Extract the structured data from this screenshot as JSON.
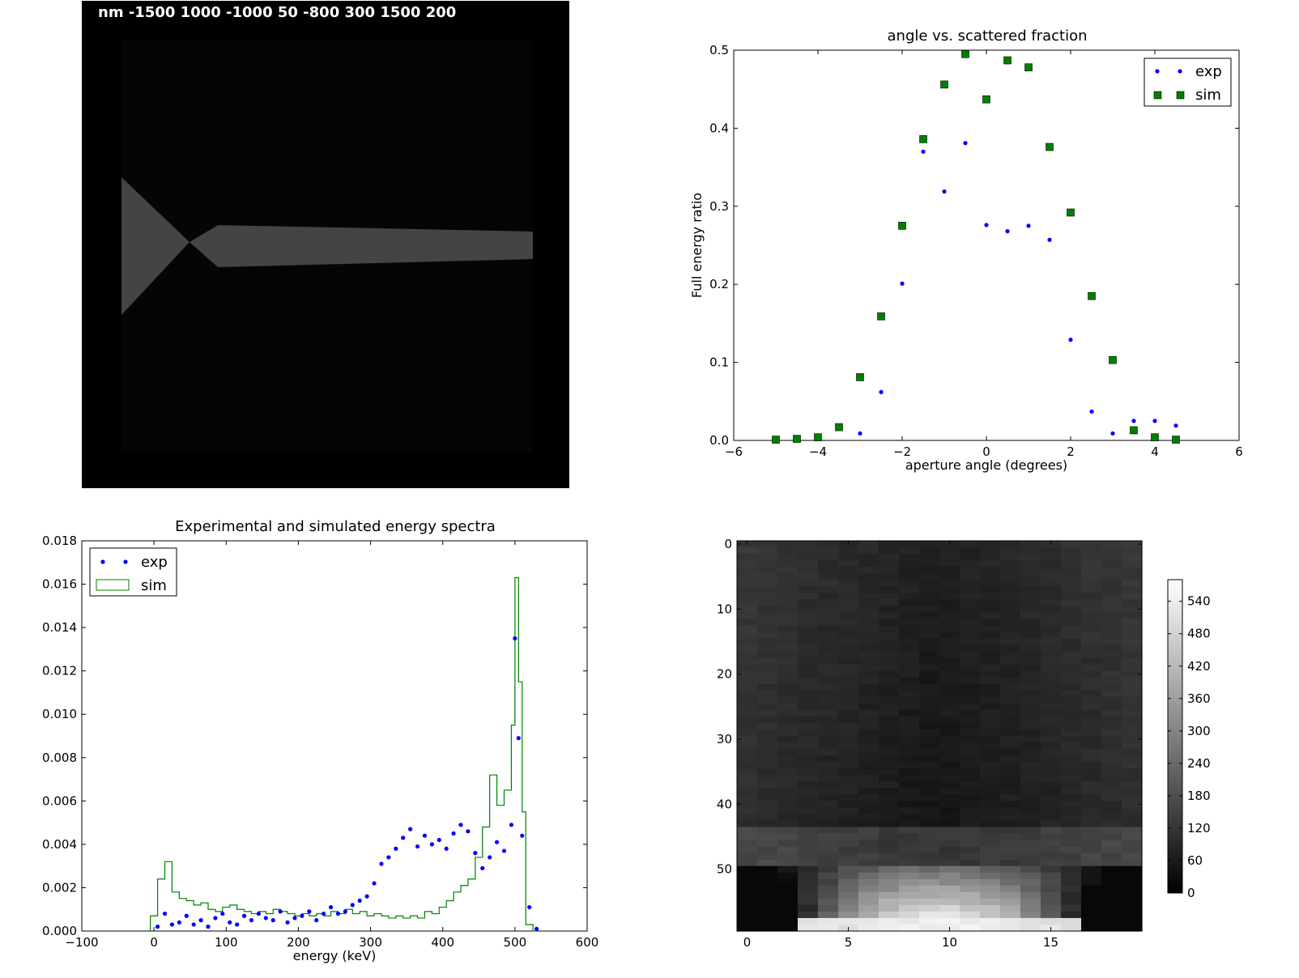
{
  "chart_data": [
    {
      "type": "image",
      "overlay_text": "nm -1500 1000 -1000 50 -800 300 1500 200"
    },
    {
      "type": "scatter",
      "title": "angle vs. scattered fraction",
      "xlabel": "aperture angle (degrees)",
      "ylabel": "Full energy ratio",
      "xlim": [
        -6,
        6
      ],
      "ylim": [
        0,
        0.5
      ],
      "xticks": [
        -6,
        -4,
        -2,
        0,
        2,
        4,
        6
      ],
      "yticks": [
        0.0,
        0.1,
        0.2,
        0.3,
        0.4,
        0.5
      ],
      "legend": "top-right",
      "series": [
        {
          "name": "exp",
          "color": "#0000ff",
          "marker": "point",
          "points": [
            [
              -3,
              0.009
            ],
            [
              -2.5,
              0.062
            ],
            [
              -2,
              0.201
            ],
            [
              -1.5,
              0.37
            ],
            [
              -1,
              0.319
            ],
            [
              -0.5,
              0.381
            ],
            [
              0,
              0.276
            ],
            [
              0.5,
              0.268
            ],
            [
              1,
              0.275
            ],
            [
              1.5,
              0.257
            ],
            [
              2,
              0.129
            ],
            [
              2.5,
              0.037
            ],
            [
              3,
              0.009
            ],
            [
              3.5,
              0.025
            ],
            [
              4,
              0.025
            ],
            [
              4.5,
              0.019
            ]
          ]
        },
        {
          "name": "sim",
          "color": "#008000",
          "marker": "square",
          "points": [
            [
              -5,
              0.001
            ],
            [
              -4.5,
              0.002
            ],
            [
              -4,
              0.004
            ],
            [
              -3.5,
              0.017
            ],
            [
              -3,
              0.081
            ],
            [
              -2.5,
              0.159
            ],
            [
              -2,
              0.275
            ],
            [
              -1.5,
              0.386
            ],
            [
              -1,
              0.456
            ],
            [
              -0.5,
              0.495
            ],
            [
              0,
              0.437
            ],
            [
              0.5,
              0.487
            ],
            [
              1,
              0.478
            ],
            [
              1.5,
              0.376
            ],
            [
              2,
              0.292
            ],
            [
              2.5,
              0.185
            ],
            [
              3,
              0.103
            ],
            [
              3.5,
              0.013
            ],
            [
              4,
              0.004
            ],
            [
              4.5,
              0.001
            ]
          ]
        }
      ]
    },
    {
      "type": "line",
      "title": "Experimental and simulated energy spectra",
      "xlabel": "energy (keV)",
      "ylabel": "",
      "xlim": [
        -100,
        600
      ],
      "ylim": [
        0,
        0.018
      ],
      "xticks": [
        -100,
        0,
        100,
        200,
        300,
        400,
        500,
        600
      ],
      "yticks": [
        0.0,
        0.002,
        0.004,
        0.006,
        0.008,
        0.01,
        0.012,
        0.014,
        0.016,
        0.018
      ],
      "legend": "top-left",
      "series": [
        {
          "name": "exp",
          "color": "#0000ff",
          "marker": "point",
          "points": [
            [
              5,
              0.0002
            ],
            [
              15,
              0.0008
            ],
            [
              25,
              0.0003
            ],
            [
              35,
              0.0004
            ],
            [
              45,
              0.0007
            ],
            [
              55,
              0.0003
            ],
            [
              65,
              0.0005
            ],
            [
              75,
              0.0002
            ],
            [
              85,
              0.0006
            ],
            [
              95,
              0.0008
            ],
            [
              105,
              0.0004
            ],
            [
              115,
              0.0003
            ],
            [
              125,
              0.0007
            ],
            [
              135,
              0.0005
            ],
            [
              145,
              0.0008
            ],
            [
              155,
              0.0006
            ],
            [
              165,
              0.0005
            ],
            [
              175,
              0.0009
            ],
            [
              185,
              0.0004
            ],
            [
              195,
              0.0006
            ],
            [
              205,
              0.0007
            ],
            [
              215,
              0.0009
            ],
            [
              225,
              0.0005
            ],
            [
              235,
              0.0008
            ],
            [
              245,
              0.0011
            ],
            [
              255,
              0.0008
            ],
            [
              265,
              0.0009
            ],
            [
              275,
              0.0012
            ],
            [
              285,
              0.0014
            ],
            [
              295,
              0.0016
            ],
            [
              305,
              0.0022
            ],
            [
              315,
              0.0031
            ],
            [
              325,
              0.0034
            ],
            [
              335,
              0.0038
            ],
            [
              345,
              0.0043
            ],
            [
              355,
              0.0047
            ],
            [
              365,
              0.0039
            ],
            [
              375,
              0.0044
            ],
            [
              385,
              0.004
            ],
            [
              395,
              0.0042
            ],
            [
              405,
              0.0038
            ],
            [
              415,
              0.0045
            ],
            [
              425,
              0.0049
            ],
            [
              435,
              0.0046
            ],
            [
              445,
              0.0036
            ],
            [
              455,
              0.0029
            ],
            [
              465,
              0.0034
            ],
            [
              475,
              0.0041
            ],
            [
              485,
              0.0037
            ],
            [
              495,
              0.0049
            ],
            [
              500,
              0.0135
            ],
            [
              505,
              0.0089
            ],
            [
              510,
              0.0044
            ],
            [
              520,
              0.0011
            ],
            [
              530,
              0.0001
            ]
          ]
        },
        {
          "name": "sim",
          "color": "#008000",
          "marker": "step",
          "points": [
            [
              -5,
              0.0007
            ],
            [
              5,
              0.0024
            ],
            [
              15,
              0.0032
            ],
            [
              25,
              0.0018
            ],
            [
              35,
              0.0015
            ],
            [
              45,
              0.0014
            ],
            [
              55,
              0.0012
            ],
            [
              65,
              0.0013
            ],
            [
              75,
              0.001
            ],
            [
              85,
              0.0009
            ],
            [
              95,
              0.0011
            ],
            [
              105,
              0.0012
            ],
            [
              115,
              0.001
            ],
            [
              125,
              0.0009
            ],
            [
              135,
              0.0008
            ],
            [
              145,
              0.0009
            ],
            [
              155,
              0.0008
            ],
            [
              165,
              0.001
            ],
            [
              175,
              0.0009
            ],
            [
              185,
              0.0008
            ],
            [
              195,
              0.0007
            ],
            [
              205,
              0.0008
            ],
            [
              215,
              0.0007
            ],
            [
              225,
              0.0008
            ],
            [
              235,
              0.0007
            ],
            [
              245,
              0.0009
            ],
            [
              255,
              0.0008
            ],
            [
              265,
              0.001
            ],
            [
              275,
              0.0008
            ],
            [
              285,
              0.0009
            ],
            [
              295,
              0.0007
            ],
            [
              305,
              0.0008
            ],
            [
              315,
              0.0007
            ],
            [
              325,
              0.0006
            ],
            [
              335,
              0.0007
            ],
            [
              345,
              0.0006
            ],
            [
              355,
              0.0007
            ],
            [
              365,
              0.0006
            ],
            [
              375,
              0.0009
            ],
            [
              385,
              0.0008
            ],
            [
              395,
              0.0011
            ],
            [
              405,
              0.0014
            ],
            [
              415,
              0.0018
            ],
            [
              425,
              0.0021
            ],
            [
              435,
              0.0024
            ],
            [
              445,
              0.0034
            ],
            [
              455,
              0.0048
            ],
            [
              465,
              0.0072
            ],
            [
              475,
              0.0058
            ],
            [
              485,
              0.0065
            ],
            [
              495,
              0.0095
            ],
            [
              500,
              0.0163
            ],
            [
              505,
              0.0115
            ],
            [
              510,
              0.0055
            ],
            [
              515,
              0.0003
            ],
            [
              525,
              0.0
            ]
          ]
        }
      ]
    },
    {
      "type": "heatmap",
      "colormap": "gray",
      "xlim": [
        0,
        20
      ],
      "ylim": [
        60,
        0
      ],
      "xticks": [
        0,
        5,
        10,
        15
      ],
      "yticks": [
        0,
        10,
        20,
        30,
        40,
        50
      ],
      "colorbar_ticks": [
        0,
        60,
        120,
        180,
        240,
        300,
        360,
        420,
        480,
        540
      ],
      "colorbar_range": [
        0,
        580
      ]
    }
  ]
}
